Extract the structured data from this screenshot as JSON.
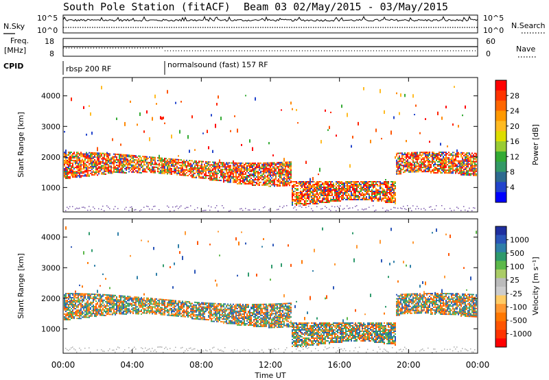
{
  "chart_data": {
    "type": "heatmap",
    "title": "South Pole Station (fitACF)",
    "subtitle": "Beam 03 02/May/2015 - 03/May/2015",
    "xlabel": "Time UT",
    "x_ticks": [
      "00:00",
      "04:00",
      "08:00",
      "12:00",
      "16:00",
      "20:00",
      "00:00"
    ],
    "xlim_hours": [
      0,
      24
    ],
    "top_panels": {
      "noise": {
        "left_label": "N.Sky",
        "right_label": "N.Search",
        "left_ticks": [
          "10^5",
          "10^0"
        ],
        "right_ticks": [
          "10^5",
          "10^0"
        ]
      },
      "frequency": {
        "left_label": "Freq.",
        "left_unit": "[MHz]",
        "right_label": "Nave",
        "left_ticks": [
          "18",
          "8"
        ],
        "right_ticks": [
          "60",
          "0"
        ]
      },
      "cpid": {
        "label": "CPID",
        "segments": [
          {
            "text": "rbsp 200 RF",
            "start_hour": 0,
            "end_hour": 5.95
          },
          {
            "text": "normalsound (fast) 157 RF",
            "start_hour": 5.95,
            "end_hour": 24
          }
        ]
      }
    },
    "panels": [
      {
        "name": "power",
        "ylabel": "Slant Range [km]",
        "ylim": [
          200,
          4600
        ],
        "y_ticks": [
          1000,
          2000,
          3000,
          4000
        ],
        "colorbar_label": "Power [dB]",
        "colorbar_ticks": [
          "28",
          "24",
          "20",
          "16",
          "12",
          "8",
          "4"
        ],
        "colorbar_colors": [
          "#ff0000",
          "#ff3300",
          "#ff6600",
          "#ff9900",
          "#ffbb22",
          "#dddd00",
          "#99cc33",
          "#33aa33",
          "#339966",
          "#2d6a8f",
          "#2244cc",
          "#0000ff"
        ]
      },
      {
        "name": "velocity",
        "ylabel": "Slant Range [km]",
        "ylim": [
          200,
          4600
        ],
        "y_ticks": [
          1000,
          2000,
          3000,
          4000
        ],
        "colorbar_label": "Velocity [m s⁻¹]",
        "colorbar_ticks": [
          "1000",
          "500",
          "100",
          "25",
          "-25",
          "-100",
          "-500",
          "-1000"
        ],
        "colorbar_colors": [
          "#1f2f9f",
          "#2a55b8",
          "#2f7fa8",
          "#2e9a6c",
          "#5cb84a",
          "#aacc66",
          "#bbbbbb",
          "#cccccc",
          "#ffcc66",
          "#ff9933",
          "#ff7700",
          "#ff5500",
          "#ff3300",
          "#ff0000"
        ]
      }
    ]
  }
}
